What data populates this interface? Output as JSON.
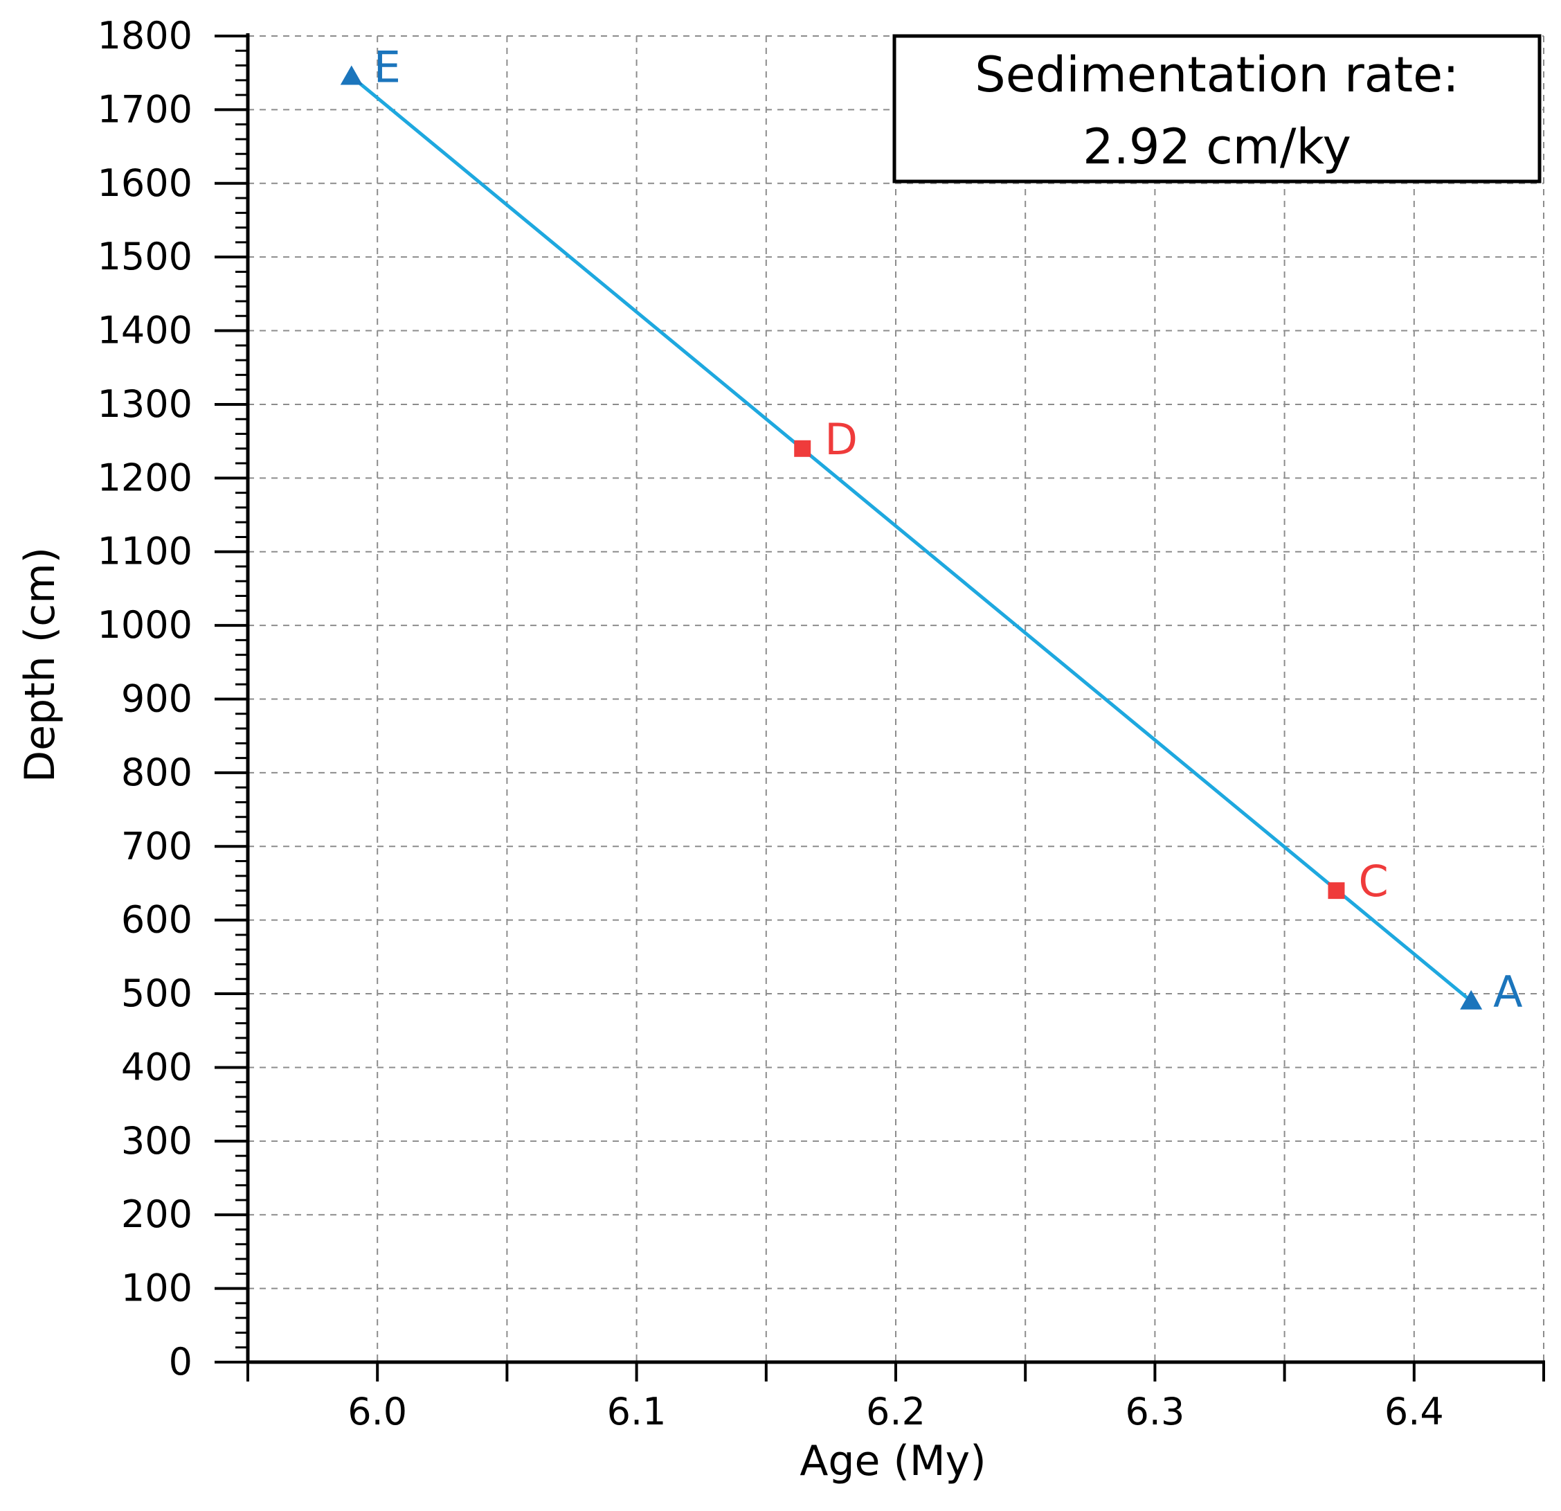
{
  "chart_data": {
    "type": "line",
    "title": "",
    "xlabel": "Age (My)",
    "ylabel": "Depth (cm)",
    "xlim": [
      5.95,
      6.45
    ],
    "ylim": [
      0,
      1800
    ],
    "grid": true,
    "x_ticks": [
      6.0,
      6.05,
      6.1,
      6.15,
      6.2,
      6.25,
      6.3,
      6.35,
      6.4,
      6.45
    ],
    "x_tick_labels": [
      "6.0",
      "",
      "6.1",
      "",
      "6.2",
      "",
      "6.3",
      "",
      "6.4",
      ""
    ],
    "y_ticks": [
      0,
      100,
      200,
      300,
      400,
      500,
      600,
      700,
      800,
      900,
      1000,
      1100,
      1200,
      1300,
      1400,
      1500,
      1600,
      1700,
      1800
    ],
    "y_tick_labels": [
      "0",
      "100",
      "200",
      "300",
      "400",
      "500",
      "600",
      "700",
      "800",
      "900",
      "1000",
      "1100",
      "1200",
      "1300",
      "1400",
      "1500",
      "1600",
      "1700",
      "1800"
    ],
    "line": {
      "color": "#1ea8df",
      "x": [
        5.99,
        6.422
      ],
      "y": [
        1745,
        490
      ]
    },
    "points": [
      {
        "label": "E",
        "x": 5.99,
        "y": 1745,
        "marker": "triangle",
        "color": "#1b75bc"
      },
      {
        "label": "D",
        "x": 6.164,
        "y": 1240,
        "marker": "square",
        "color": "#ef3b3b"
      },
      {
        "label": "C",
        "x": 6.37,
        "y": 640,
        "marker": "square",
        "color": "#ef3b3b"
      },
      {
        "label": "A",
        "x": 6.422,
        "y": 490,
        "marker": "triangle",
        "color": "#1b75bc"
      }
    ],
    "annotation": {
      "line1": "Sedimentation rate:",
      "line2": "2.92 cm/ky"
    }
  }
}
